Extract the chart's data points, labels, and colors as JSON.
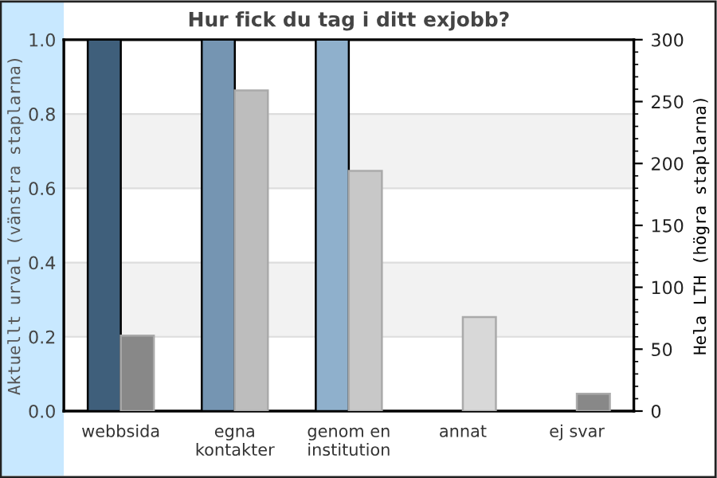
{
  "chart_data": {
    "type": "bar",
    "title": "Hur fick du tag i ditt exjobb?",
    "categories": [
      "webbsida",
      "egna\nkontakter",
      "genom en\ninstitution",
      "annat",
      "ej svar"
    ],
    "series": [
      {
        "values": [
          1.0,
          1.0,
          1.0,
          null,
          null
        ],
        "colors": [
          "#3f5f7b",
          "#7595b2",
          "#8fb0cc",
          "#8fb0cc",
          "#8fb0cc"
        ]
      },
      {
        "axis": "y2",
        "values": [
          61,
          259,
          194,
          76,
          14
        ],
        "colors": [
          "#888888",
          "#bdbdbd",
          "#c8c8c8",
          "#d8d8d8",
          "#888888"
        ]
      }
    ],
    "ylabel": "Aktuellt urval (vänstra staplarna)",
    "y2label": "Hela LTH (högra staplarna)",
    "ylim": [
      0,
      1.0
    ],
    "yticks": [
      {
        "value": 0,
        "label": "0.0"
      },
      0.2,
      0.4,
      0.6,
      0.8,
      {
        "value": 1,
        "label": "1.0"
      }
    ],
    "y2lim": [
      0,
      300
    ],
    "y2ticks": [
      0,
      50,
      100,
      150,
      200,
      250,
      300
    ],
    "bands": [
      {
        "axis": "y",
        "from": 0.2,
        "to": 0.4,
        "color": "#f2f2f2"
      },
      {
        "axis": "y",
        "from": 0.6,
        "to": 0.8,
        "color": "#f2f2f2"
      }
    ],
    "grid": "y"
  }
}
